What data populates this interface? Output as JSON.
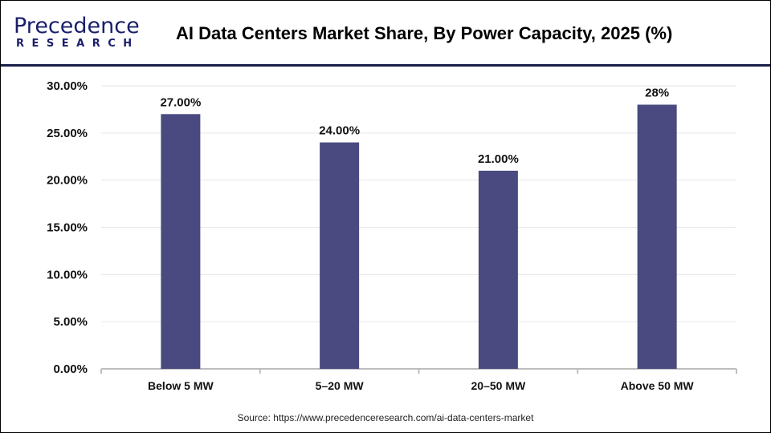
{
  "logo": {
    "line1": "Precedence",
    "line2": "RESEARCH"
  },
  "chart_data": {
    "type": "bar",
    "title": "AI Data Centers Market Share, By Power Capacity, 2025 (%)",
    "categories": [
      "Below 5 MW",
      "5–20 MW",
      "20–50 MW",
      "Above 50 MW"
    ],
    "values": [
      27,
      24,
      21,
      28
    ],
    "data_labels": [
      "27.00%",
      "24.00%",
      "21.00%",
      "28%"
    ],
    "yticks": [
      "0.00%",
      "5.00%",
      "10.00%",
      "15.00%",
      "20.00%",
      "25.00%",
      "30.00%"
    ],
    "ylim": [
      0,
      30
    ],
    "grid": true,
    "bar_color": "#4a4a80",
    "xlabel": "",
    "ylabel": ""
  },
  "source": "Source: https://www.precedenceresearch.com/ai-data-centers-market"
}
